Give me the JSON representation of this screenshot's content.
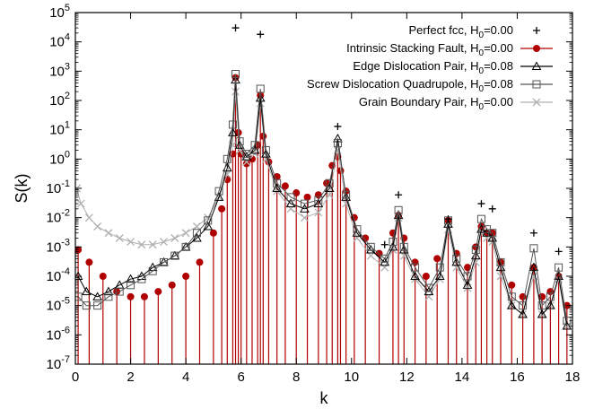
{
  "chart_data": {
    "type": "scatter",
    "xlabel": "k",
    "ylabel": "S(k)",
    "xlim": [
      0,
      18
    ],
    "ylim_log10": [
      -7,
      5
    ],
    "yscale": "log",
    "x_ticks": [
      0,
      2,
      4,
      6,
      8,
      10,
      12,
      14,
      16,
      18
    ],
    "y_tick_exponents": [
      -7,
      -6,
      -5,
      -4,
      -3,
      -2,
      -1,
      0,
      1,
      2,
      3,
      4,
      5
    ],
    "legend_placement": "top-right",
    "grid": false,
    "series": [
      {
        "name": "Perfect fcc, H",
        "name_sub": "0",
        "name_tail": "=0.00",
        "color": "#000000",
        "marker": "plus",
        "style": "points",
        "x": [
          5.8,
          6.7,
          9.5,
          11.2,
          11.7,
          13.5,
          14.7,
          15.1,
          16.6,
          17.5
        ],
        "y": [
          30000,
          18000,
          13,
          0.0012,
          0.06,
          0.009,
          0.03,
          0.02,
          0.003,
          0.0007
        ]
      },
      {
        "name": "Intrinsic Stacking Fault, H",
        "name_sub": "0",
        "name_tail": "=0.00",
        "color": "#b00000",
        "marker": "circle",
        "style": "impulses",
        "x": [
          0.1,
          0.5,
          1.0,
          1.5,
          2.0,
          2.5,
          3.0,
          3.5,
          4.0,
          4.5,
          5.0,
          5.3,
          5.5,
          5.7,
          5.8,
          5.9,
          6.0,
          6.2,
          6.4,
          6.6,
          6.7,
          6.8,
          7.0,
          7.3,
          7.6,
          8.0,
          8.4,
          8.8,
          9.1,
          9.3,
          9.5,
          9.6,
          9.8,
          10.1,
          10.5,
          11.0,
          11.5,
          11.7,
          11.9,
          12.3,
          12.7,
          13.1,
          13.5,
          13.8,
          14.2,
          14.5,
          14.7,
          14.9,
          15.1,
          15.4,
          15.8,
          16.2,
          16.6,
          16.9,
          17.2,
          17.5,
          17.8
        ],
        "y": [
          0.0008,
          0.0003,
          0.0001,
          3e-05,
          2e-05,
          2e-05,
          3e-05,
          5e-05,
          0.0001,
          0.0003,
          0.003,
          0.02,
          0.2,
          1.5,
          600,
          8,
          1.5,
          0.7,
          1.0,
          3,
          150,
          6,
          0.8,
          0.25,
          0.12,
          0.07,
          0.05,
          0.06,
          0.15,
          0.6,
          1.2,
          0.4,
          0.08,
          0.01,
          0.002,
          0.0006,
          0.003,
          0.012,
          0.002,
          0.0003,
          0.0001,
          0.0004,
          0.008,
          0.0006,
          0.0002,
          0.001,
          0.005,
          0.003,
          0.003,
          0.0003,
          5e-05,
          2e-05,
          0.0002,
          2e-05,
          3e-05,
          0.0001,
          1e-05
        ]
      },
      {
        "name": "Edge Dislocation Pair, H",
        "name_sub": "0",
        "name_tail": "=0.08",
        "color": "#000000",
        "marker": "triangle",
        "style": "linespoints",
        "x": [
          0.1,
          0.4,
          0.8,
          1.2,
          1.6,
          2.0,
          2.4,
          2.8,
          3.2,
          3.6,
          4.0,
          4.4,
          4.8,
          5.2,
          5.5,
          5.7,
          5.8,
          5.95,
          6.2,
          6.5,
          6.7,
          6.9,
          7.3,
          7.8,
          8.3,
          8.8,
          9.2,
          9.5,
          9.8,
          10.2,
          10.7,
          11.2,
          11.5,
          11.7,
          11.9,
          12.3,
          12.8,
          13.2,
          13.5,
          13.8,
          14.2,
          14.5,
          14.7,
          14.9,
          15.1,
          15.4,
          15.8,
          16.2,
          16.6,
          16.9,
          17.2,
          17.5,
          17.8
        ],
        "y": [
          0.0001,
          3e-05,
          2e-05,
          3e-05,
          5e-05,
          8e-05,
          0.0001,
          0.0002,
          0.0003,
          0.0005,
          0.001,
          0.002,
          0.005,
          0.05,
          0.5,
          8,
          500,
          3,
          1.2,
          2,
          120,
          1.5,
          0.1,
          0.03,
          0.02,
          0.03,
          0.1,
          5,
          0.05,
          0.003,
          0.0008,
          0.0003,
          0.001,
          0.012,
          0.0008,
          0.0001,
          3e-05,
          0.0001,
          0.006,
          0.0003,
          5e-05,
          0.0005,
          0.004,
          0.003,
          0.002,
          0.0002,
          1e-05,
          5e-06,
          0.0002,
          5e-06,
          1e-05,
          0.0001,
          2e-06
        ]
      },
      {
        "name": "Screw Dislocation Quadrupole, H",
        "name_sub": "0",
        "name_tail": "=0.08",
        "color": "#555555",
        "marker": "square",
        "style": "linespoints",
        "x": [
          0.1,
          0.4,
          0.8,
          1.2,
          1.6,
          2.0,
          2.4,
          2.8,
          3.2,
          3.6,
          4.0,
          4.4,
          4.8,
          5.2,
          5.5,
          5.7,
          5.8,
          5.95,
          6.2,
          6.5,
          6.7,
          6.9,
          7.3,
          7.8,
          8.3,
          8.8,
          9.2,
          9.5,
          9.8,
          10.2,
          10.7,
          11.2,
          11.5,
          11.7,
          11.9,
          12.3,
          12.8,
          13.2,
          13.5,
          13.8,
          14.2,
          14.5,
          14.7,
          14.9,
          15.1,
          15.4,
          15.8,
          16.2,
          16.6,
          16.9,
          17.2,
          17.5,
          17.8
        ],
        "y": [
          2e-05,
          1e-05,
          1e-05,
          2e-05,
          3e-05,
          5e-05,
          8e-05,
          0.00015,
          0.0003,
          0.0005,
          0.001,
          0.003,
          0.008,
          0.08,
          1.0,
          15,
          800,
          4,
          1.5,
          3,
          250,
          2,
          0.15,
          0.05,
          0.03,
          0.04,
          0.15,
          3.5,
          0.06,
          0.004,
          0.001,
          0.0004,
          0.0015,
          0.018,
          0.001,
          0.0002,
          4e-05,
          0.0002,
          0.008,
          0.0004,
          0.0001,
          0.0008,
          0.009,
          0.004,
          0.003,
          0.0003,
          2e-05,
          1e-05,
          0.0009,
          1e-05,
          2e-05,
          0.0002,
          3e-06
        ]
      },
      {
        "name": "Grain Boundary Pair, H",
        "name_sub": "0",
        "name_tail": "=0.00",
        "color": "#b0b0b0",
        "marker": "cross",
        "style": "linespoints",
        "x": [
          0.05,
          0.2,
          0.5,
          0.8,
          1.2,
          1.6,
          2.0,
          2.4,
          2.8,
          3.2,
          3.6,
          4.0,
          4.4,
          4.8,
          5.2,
          5.5,
          5.7,
          5.8,
          5.95,
          6.2,
          6.5,
          6.7,
          6.9,
          7.3,
          7.8,
          8.3,
          8.8,
          9.2,
          9.5,
          9.8,
          10.2,
          10.7,
          11.2,
          11.5,
          11.7,
          11.9,
          12.3,
          12.8,
          13.2,
          13.5,
          13.8,
          14.2,
          14.5,
          14.7,
          14.9,
          15.1,
          15.4,
          15.8,
          16.2,
          16.6,
          16.9,
          17.2,
          17.5,
          17.8
        ],
        "y": [
          0.1,
          0.03,
          0.01,
          0.005,
          0.003,
          0.002,
          0.0015,
          0.0012,
          0.0012,
          0.0015,
          0.002,
          0.003,
          0.005,
          0.01,
          0.05,
          0.3,
          3,
          200,
          2,
          0.8,
          1.5,
          80,
          1,
          0.08,
          0.02,
          0.01,
          0.015,
          0.06,
          2,
          0.03,
          0.002,
          0.0005,
          0.0002,
          0.0008,
          0.01,
          0.0005,
          8e-05,
          2e-05,
          8e-05,
          0.004,
          0.0002,
          4e-05,
          0.0003,
          0.003,
          0.002,
          0.0015,
          0.0001,
          1e-05,
          5e-06,
          0.0001,
          5e-06,
          1e-05,
          8e-05,
          2e-06
        ]
      }
    ]
  }
}
